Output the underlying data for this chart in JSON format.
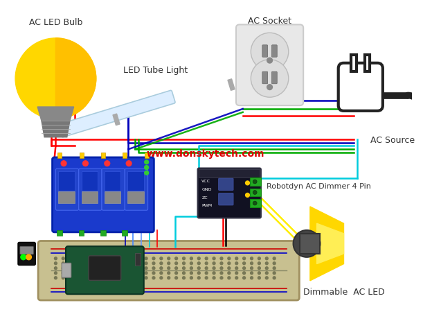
{
  "bg_color": "#ffffff",
  "labels": {
    "ac_led_bulb": "AC LED Bulb",
    "led_tube_light": "LED Tube Light",
    "ac_socket": "AC Socket",
    "ac_source": "AC Source",
    "robotdyn": "Robotdyn AC Dimmer 4 Pin",
    "dimmable": "Dimmable  AC LED",
    "website": "www.donskytech.com"
  },
  "wire_colors": {
    "red": "#ff0000",
    "blue": "#0000bb",
    "green": "#00aa00",
    "cyan": "#00ccdd",
    "black": "#000000",
    "yellow": "#ffee00"
  }
}
